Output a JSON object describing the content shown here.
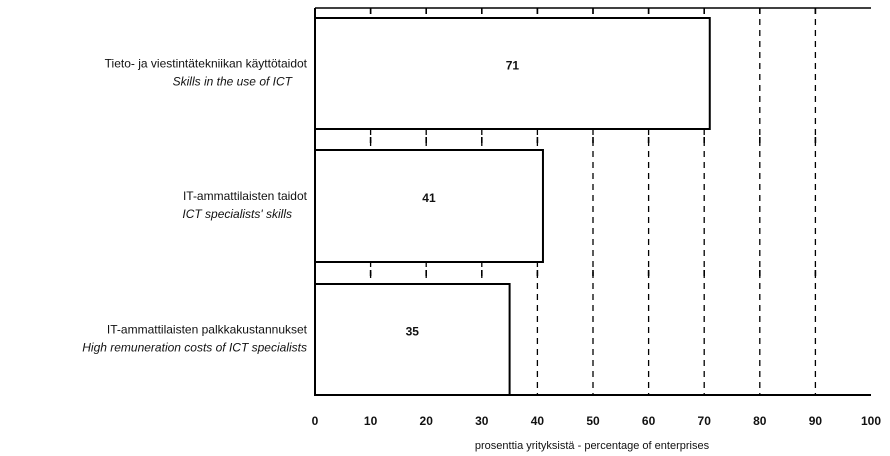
{
  "chart_data": {
    "type": "bar",
    "orientation": "horizontal",
    "categories": [
      {
        "label_fi": "Tieto- ja viestintätekniikan käyttötaidot",
        "label_en": "Skills in the use of ICT"
      },
      {
        "label_fi": "IT-ammattilaisten taidot",
        "label_en": "ICT specialists' skills"
      },
      {
        "label_fi": "IT-ammattilaisten palkkakustannukset",
        "label_en": "High remuneration costs of ICT specialists"
      }
    ],
    "values": [
      71,
      41,
      35
    ],
    "value_labels": [
      "71",
      "41",
      "35"
    ],
    "xlim": [
      0,
      100
    ],
    "x_ticks": [
      "0",
      "10",
      "20",
      "30",
      "40",
      "50",
      "60",
      "70",
      "80",
      "90",
      "100"
    ],
    "xlabel": "prosenttia yrityksistä - percentage of enterprises",
    "grid": "vertical dashed",
    "colors": {
      "bar_fill": "#ffffff",
      "bar_stroke": "#000000",
      "grid": "#000000",
      "axis": "#000000"
    }
  }
}
